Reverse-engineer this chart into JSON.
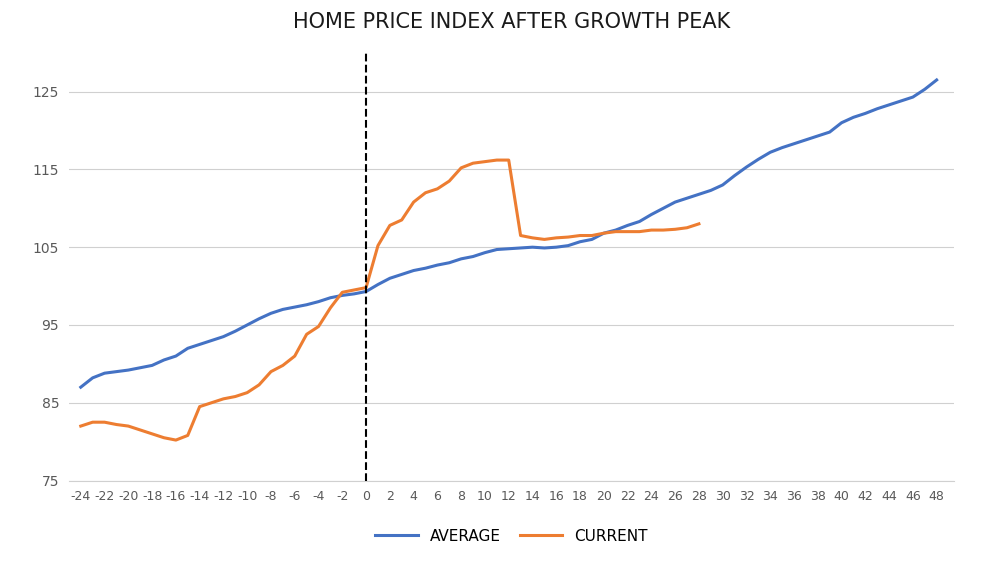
{
  "title": "HOME PRICE INDEX AFTER GROWTH PEAK",
  "title_fontsize": 15,
  "title_fontweight": "normal",
  "avg_x": [
    -24,
    -23,
    -22,
    -21,
    -20,
    -19,
    -18,
    -17,
    -16,
    -15,
    -14,
    -13,
    -12,
    -11,
    -10,
    -9,
    -8,
    -7,
    -6,
    -5,
    -4,
    -3,
    -2,
    -1,
    0,
    1,
    2,
    3,
    4,
    5,
    6,
    7,
    8,
    9,
    10,
    11,
    12,
    13,
    14,
    15,
    16,
    17,
    18,
    19,
    20,
    21,
    22,
    23,
    24,
    25,
    26,
    27,
    28,
    29,
    30,
    31,
    32,
    33,
    34,
    35,
    36,
    37,
    38,
    39,
    40,
    41,
    42,
    43,
    44,
    45,
    46,
    47,
    48
  ],
  "avg_y": [
    87.0,
    88.2,
    88.8,
    89.0,
    89.2,
    89.5,
    89.8,
    90.5,
    91.0,
    92.0,
    92.5,
    93.0,
    93.5,
    94.2,
    95.0,
    95.8,
    96.5,
    97.0,
    97.3,
    97.6,
    98.0,
    98.5,
    98.8,
    99.0,
    99.3,
    100.2,
    101.0,
    101.5,
    102.0,
    102.3,
    102.7,
    103.0,
    103.5,
    103.8,
    104.3,
    104.7,
    104.8,
    104.9,
    105.0,
    104.9,
    105.0,
    105.2,
    105.7,
    106.0,
    106.8,
    107.2,
    107.8,
    108.3,
    109.2,
    110.0,
    110.8,
    111.3,
    111.8,
    112.3,
    113.0,
    114.2,
    115.3,
    116.3,
    117.2,
    117.8,
    118.3,
    118.8,
    119.3,
    119.8,
    121.0,
    121.7,
    122.2,
    122.8,
    123.3,
    123.8,
    124.3,
    125.3,
    126.5
  ],
  "cur_x": [
    -24,
    -23,
    -22,
    -21,
    -20,
    -19,
    -18,
    -17,
    -16,
    -15,
    -14,
    -13,
    -12,
    -11,
    -10,
    -9,
    -8,
    -7,
    -6,
    -5,
    -4,
    -3,
    -2,
    -1,
    0,
    1,
    2,
    3,
    4,
    5,
    6,
    7,
    8,
    9,
    10,
    11,
    12,
    13,
    14,
    15,
    16,
    17,
    18,
    19,
    20,
    21,
    22,
    23,
    24,
    25,
    26,
    27,
    28
  ],
  "cur_y": [
    82.0,
    82.5,
    82.5,
    82.2,
    82.0,
    81.5,
    81.0,
    80.5,
    80.2,
    80.8,
    84.5,
    85.0,
    85.5,
    85.8,
    86.3,
    87.3,
    89.0,
    89.8,
    91.0,
    93.8,
    94.8,
    97.2,
    99.2,
    99.5,
    99.8,
    105.2,
    107.8,
    108.5,
    110.8,
    112.0,
    112.5,
    113.5,
    115.2,
    115.8,
    116.0,
    116.2,
    116.2,
    106.5,
    106.2,
    106.0,
    106.2,
    106.3,
    106.5,
    106.5,
    106.8,
    107.0,
    107.0,
    107.0,
    107.2,
    107.2,
    107.3,
    107.5,
    108.0
  ],
  "avg_color": "#4472C4",
  "cur_color": "#ED7D31",
  "avg_linewidth": 2.2,
  "cur_linewidth": 2.2,
  "ylim": [
    75,
    130
  ],
  "yticks": [
    75,
    85,
    95,
    105,
    115,
    125
  ],
  "xticks": [
    -24,
    -22,
    -20,
    -18,
    -16,
    -14,
    -12,
    -10,
    -8,
    -6,
    -4,
    -2,
    0,
    2,
    4,
    6,
    8,
    10,
    12,
    14,
    16,
    18,
    20,
    22,
    24,
    26,
    28,
    30,
    32,
    34,
    36,
    38,
    40,
    42,
    44,
    46,
    48
  ],
  "vline_x": 0,
  "vline_color": "black",
  "vline_style": "--",
  "legend_labels": [
    "AVERAGE",
    "CURRENT"
  ],
  "bg_color": "#ffffff",
  "grid_color": "#d0d0d0",
  "tick_fontsize": 9,
  "tick_color": "#595959"
}
